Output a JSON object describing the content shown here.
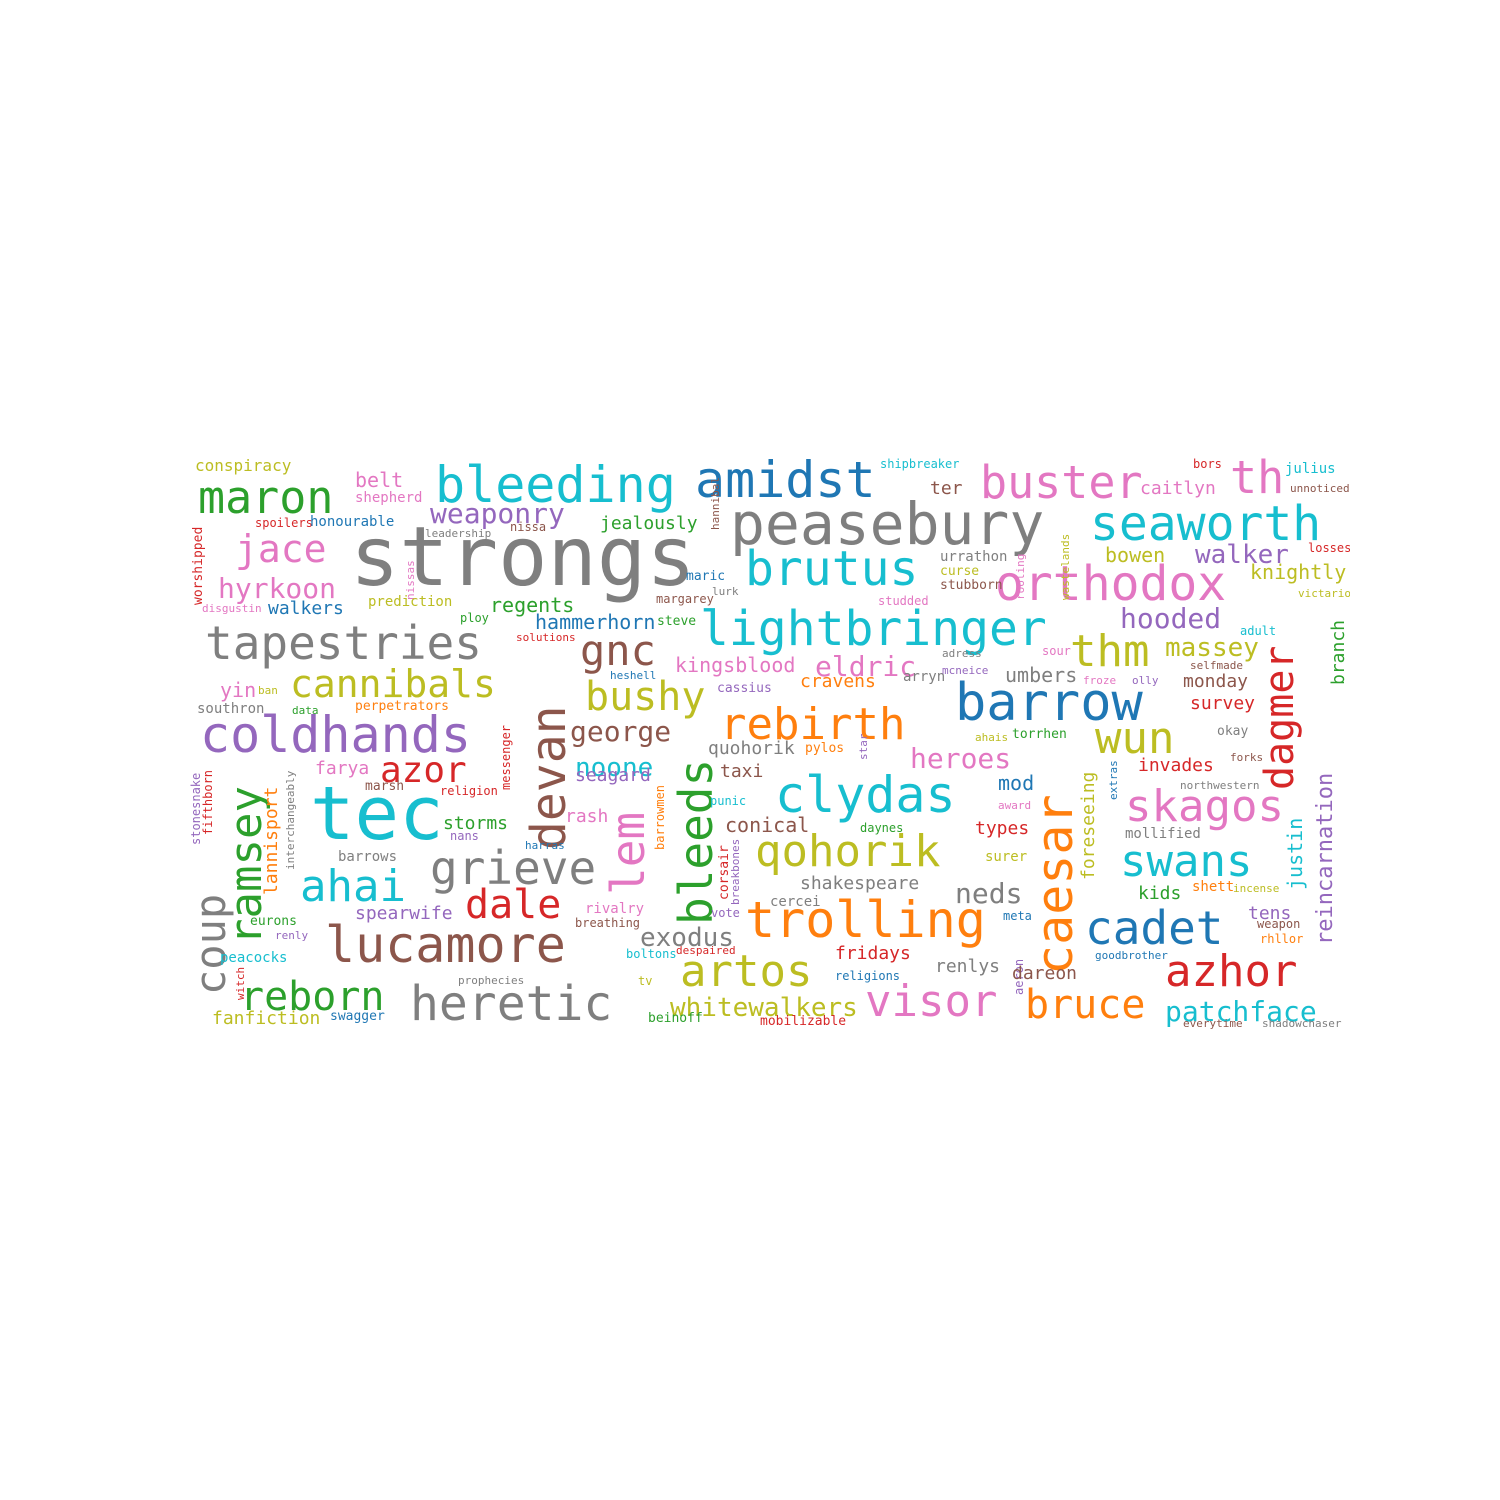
{
  "words": [
    {
      "text": "strongs",
      "color": "#7f7f7f"
    },
    {
      "text": "tec",
      "color": "#17becf"
    },
    {
      "text": "peasebury",
      "color": "#7f7f7f"
    },
    {
      "text": "bleeding",
      "color": "#17becf"
    },
    {
      "text": "amidst",
      "color": "#1f77b4"
    },
    {
      "text": "buster",
      "color": "#e377c2"
    },
    {
      "text": "th",
      "color": "#e377c2"
    },
    {
      "text": "maron",
      "color": "#2ca02c"
    },
    {
      "text": "seaworth",
      "color": "#17becf"
    },
    {
      "text": "brutus",
      "color": "#17becf"
    },
    {
      "text": "orthodox",
      "color": "#e377c2"
    },
    {
      "text": "jace",
      "color": "#e377c2"
    },
    {
      "text": "lightbringer",
      "color": "#17becf"
    },
    {
      "text": "tapestries",
      "color": "#7f7f7f"
    },
    {
      "text": "gnc",
      "color": "#8c564b"
    },
    {
      "text": "thm",
      "color": "#bcbd22"
    },
    {
      "text": "barrow",
      "color": "#1f77b4"
    },
    {
      "text": "coldhands",
      "color": "#9467bd"
    },
    {
      "text": "cannibals",
      "color": "#bcbd22"
    },
    {
      "text": "devan",
      "color": "#8c564b"
    },
    {
      "text": "rebirth",
      "color": "#ff7f0e"
    },
    {
      "text": "wun",
      "color": "#bcbd22"
    },
    {
      "text": "dagmer",
      "color": "#d62728"
    },
    {
      "text": "clydas",
      "color": "#17becf"
    },
    {
      "text": "skagos",
      "color": "#e377c2"
    },
    {
      "text": "ramsey",
      "color": "#2ca02c"
    },
    {
      "text": "azor",
      "color": "#d62728"
    },
    {
      "text": "lem",
      "color": "#e377c2"
    },
    {
      "text": "bleeds",
      "color": "#2ca02c"
    },
    {
      "text": "caesar",
      "color": "#ff7f0e"
    },
    {
      "text": "grieve",
      "color": "#7f7f7f"
    },
    {
      "text": "qohorik",
      "color": "#bcbd22"
    },
    {
      "text": "swans",
      "color": "#17becf"
    },
    {
      "text": "ahai",
      "color": "#17becf"
    },
    {
      "text": "coup",
      "color": "#7f7f7f"
    },
    {
      "text": "dale",
      "color": "#d62728"
    },
    {
      "text": "trolling",
      "color": "#ff7f0e"
    },
    {
      "text": "cadet",
      "color": "#1f77b4"
    },
    {
      "text": "lucamore",
      "color": "#8c564b"
    },
    {
      "text": "artos",
      "color": "#bcbd22"
    },
    {
      "text": "azhor",
      "color": "#d62728"
    },
    {
      "text": "reborn",
      "color": "#2ca02c"
    },
    {
      "text": "heretic",
      "color": "#7f7f7f"
    },
    {
      "text": "visor",
      "color": "#e377c2"
    },
    {
      "text": "bruce",
      "color": "#ff7f0e"
    },
    {
      "text": "patchface",
      "color": "#17becf"
    },
    {
      "text": "whitewalkers",
      "color": "#bcbd22"
    },
    {
      "text": "bushy",
      "color": "#bcbd22"
    },
    {
      "text": "hyrkoon",
      "color": "#e377c2"
    },
    {
      "text": "weaponry",
      "color": "#9467bd"
    },
    {
      "text": "reincarnation",
      "color": "#9467bd"
    },
    {
      "text": "hooded",
      "color": "#9467bd"
    },
    {
      "text": "walker",
      "color": "#9467bd"
    },
    {
      "text": "massey",
      "color": "#bcbd22"
    },
    {
      "text": "eldric",
      "color": "#e377c2"
    },
    {
      "text": "george",
      "color": "#8c564b"
    },
    {
      "text": "noone",
      "color": "#17becf"
    },
    {
      "text": "heroes",
      "color": "#e377c2"
    },
    {
      "text": "exodus",
      "color": "#7f7f7f"
    },
    {
      "text": "neds",
      "color": "#7f7f7f"
    },
    {
      "text": "conspiracy",
      "color": "#bcbd22"
    },
    {
      "text": "belt",
      "color": "#e377c2"
    },
    {
      "text": "shepherd",
      "color": "#e377c2"
    },
    {
      "text": "spoilers",
      "color": "#d62728"
    },
    {
      "text": "honourable",
      "color": "#1f77b4"
    },
    {
      "text": "nissa",
      "color": "#8c564b"
    },
    {
      "text": "leadership",
      "color": "#7f7f7f"
    },
    {
      "text": "jealously",
      "color": "#2ca02c"
    },
    {
      "text": "hannibal",
      "color": "#8c564b"
    },
    {
      "text": "maric",
      "color": "#1f77b4"
    },
    {
      "text": "shipbreaker",
      "color": "#17becf"
    },
    {
      "text": "ter",
      "color": "#8c564b"
    },
    {
      "text": "caitlyn",
      "color": "#e377c2"
    },
    {
      "text": "bors",
      "color": "#d62728"
    },
    {
      "text": "julius",
      "color": "#17becf"
    },
    {
      "text": "unnoticed",
      "color": "#8c564b"
    },
    {
      "text": "worshipped",
      "color": "#d62728"
    },
    {
      "text": "nissas",
      "color": "#e377c2"
    },
    {
      "text": "disgustin",
      "color": "#e377c2"
    },
    {
      "text": "walkers",
      "color": "#1f77b4"
    },
    {
      "text": "prediction",
      "color": "#bcbd22"
    },
    {
      "text": "regents",
      "color": "#2ca02c"
    },
    {
      "text": "margarey",
      "color": "#8c564b"
    },
    {
      "text": "lurk",
      "color": "#7f7f7f"
    },
    {
      "text": "urrathon",
      "color": "#7f7f7f"
    },
    {
      "text": "curse",
      "color": "#bcbd22"
    },
    {
      "text": "stubborn",
      "color": "#8c564b"
    },
    {
      "text": "rooling",
      "color": "#e377c2"
    },
    {
      "text": "wastelands",
      "color": "#bcbd22"
    },
    {
      "text": "bowen",
      "color": "#bcbd22"
    },
    {
      "text": "knightly",
      "color": "#bcbd22"
    },
    {
      "text": "losses",
      "color": "#d62728"
    },
    {
      "text": "victarion",
      "color": "#bcbd22"
    },
    {
      "text": "adult",
      "color": "#17becf"
    },
    {
      "text": "studded",
      "color": "#e377c2"
    },
    {
      "text": "ploy",
      "color": "#2ca02c"
    },
    {
      "text": "solutions",
      "color": "#d62728"
    },
    {
      "text": "hammerhorn",
      "color": "#1f77b4"
    },
    {
      "text": "steve",
      "color": "#2ca02c"
    },
    {
      "text": "kingsblood",
      "color": "#e377c2"
    },
    {
      "text": "cassius",
      "color": "#9467bd"
    },
    {
      "text": "heshell",
      "color": "#1f77b4"
    },
    {
      "text": "cravens",
      "color": "#ff7f0e"
    },
    {
      "text": "arryn",
      "color": "#7f7f7f"
    },
    {
      "text": "mcneice",
      "color": "#9467bd"
    },
    {
      "text": "adress",
      "color": "#7f7f7f"
    },
    {
      "text": "sour",
      "color": "#e377c2"
    },
    {
      "text": "selfmade",
      "color": "#8c564b"
    },
    {
      "text": "umbers",
      "color": "#7f7f7f"
    },
    {
      "text": "froze",
      "color": "#e377c2"
    },
    {
      "text": "olly",
      "color": "#9467bd"
    },
    {
      "text": "monday",
      "color": "#8c564b"
    },
    {
      "text": "branch",
      "color": "#2ca02c"
    },
    {
      "text": "yin",
      "color": "#e377c2"
    },
    {
      "text": "ban",
      "color": "#bcbd22"
    },
    {
      "text": "southron",
      "color": "#7f7f7f"
    },
    {
      "text": "data",
      "color": "#2ca02c"
    },
    {
      "text": "perpetrators",
      "color": "#ff7f0e"
    },
    {
      "text": "messenger",
      "color": "#d62728"
    },
    {
      "text": "survey",
      "color": "#d62728"
    },
    {
      "text": "okay",
      "color": "#7f7f7f"
    },
    {
      "text": "quohorik",
      "color": "#7f7f7f"
    },
    {
      "text": "pylos",
      "color": "#ff7f0e"
    },
    {
      "text": "star",
      "color": "#9467bd"
    },
    {
      "text": "ahais",
      "color": "#bcbd22"
    },
    {
      "text": "torrhen",
      "color": "#2ca02c"
    },
    {
      "text": "forks",
      "color": "#8c564b"
    },
    {
      "text": "stonesnake",
      "color": "#9467bd"
    },
    {
      "text": "farya",
      "color": "#e377c2"
    },
    {
      "text": "seagard",
      "color": "#9467bd"
    },
    {
      "text": "taxi",
      "color": "#8c564b"
    },
    {
      "text": "invades",
      "color": "#d62728"
    },
    {
      "text": "northwestern",
      "color": "#7f7f7f"
    },
    {
      "text": "fifthborn",
      "color": "#d62728"
    },
    {
      "text": "interchangeably",
      "color": "#7f7f7f"
    },
    {
      "text": "marsh",
      "color": "#8c564b"
    },
    {
      "text": "religion",
      "color": "#d62728"
    },
    {
      "text": "barrowmen",
      "color": "#ff7f0e"
    },
    {
      "text": "punic",
      "color": "#17becf"
    },
    {
      "text": "mod",
      "color": "#1f77b4"
    },
    {
      "text": "award",
      "color": "#e377c2"
    },
    {
      "text": "extras",
      "color": "#1f77b4"
    },
    {
      "text": "lannisport",
      "color": "#ff7f0e"
    },
    {
      "text": "storms",
      "color": "#2ca02c"
    },
    {
      "text": "nans",
      "color": "#9467bd"
    },
    {
      "text": "rash",
      "color": "#e377c2"
    },
    {
      "text": "conical",
      "color": "#8c564b"
    },
    {
      "text": "daynes",
      "color": "#2ca02c"
    },
    {
      "text": "types",
      "color": "#d62728"
    },
    {
      "text": "foreseeing",
      "color": "#bcbd22"
    },
    {
      "text": "justin",
      "color": "#17becf"
    },
    {
      "text": "mollified",
      "color": "#7f7f7f"
    },
    {
      "text": "barrows",
      "color": "#7f7f7f"
    },
    {
      "text": "harras",
      "color": "#1f77b4"
    },
    {
      "text": "corsair",
      "color": "#d62728"
    },
    {
      "text": "breakbones",
      "color": "#9467bd"
    },
    {
      "text": "shakespeare",
      "color": "#7f7f7f"
    },
    {
      "text": "surer",
      "color": "#bcbd22"
    },
    {
      "text": "kids",
      "color": "#2ca02c"
    },
    {
      "text": "shett",
      "color": "#ff7f0e"
    },
    {
      "text": "incense",
      "color": "#bcbd22"
    },
    {
      "text": "eurons",
      "color": "#2ca02c"
    },
    {
      "text": "spearwife",
      "color": "#9467bd"
    },
    {
      "text": "rivalry",
      "color": "#e377c2"
    },
    {
      "text": "breathing",
      "color": "#8c564b"
    },
    {
      "text": "vote",
      "color": "#9467bd"
    },
    {
      "text": "cercei",
      "color": "#7f7f7f"
    },
    {
      "text": "meta",
      "color": "#1f77b4"
    },
    {
      "text": "tens",
      "color": "#9467bd"
    },
    {
      "text": "weapon",
      "color": "#8c564b"
    },
    {
      "text": "renly",
      "color": "#9467bd"
    },
    {
      "text": "peacocks",
      "color": "#17becf"
    },
    {
      "text": "boltons",
      "color": "#17becf"
    },
    {
      "text": "despaired",
      "color": "#d62728"
    },
    {
      "text": "fridays",
      "color": "#d62728"
    },
    {
      "text": "renlys",
      "color": "#7f7f7f"
    },
    {
      "text": "goodbrother",
      "color": "#1f77b4"
    },
    {
      "text": "rhllor",
      "color": "#ff7f0e"
    },
    {
      "text": "witch",
      "color": "#d62728"
    },
    {
      "text": "prophecies",
      "color": "#7f7f7f"
    },
    {
      "text": "tv",
      "color": "#bcbd22"
    },
    {
      "text": "religions",
      "color": "#1f77b4"
    },
    {
      "text": "aeron",
      "color": "#9467bd"
    },
    {
      "text": "dareon",
      "color": "#8c564b"
    },
    {
      "text": "fanfiction",
      "color": "#bcbd22"
    },
    {
      "text": "swagger",
      "color": "#1f77b4"
    },
    {
      "text": "beinoff",
      "color": "#2ca02c"
    },
    {
      "text": "mobilizable",
      "color": "#d62728"
    },
    {
      "text": "everytime",
      "color": "#8c564b"
    },
    {
      "text": "shadowchaser",
      "color": "#7f7f7f"
    }
  ]
}
